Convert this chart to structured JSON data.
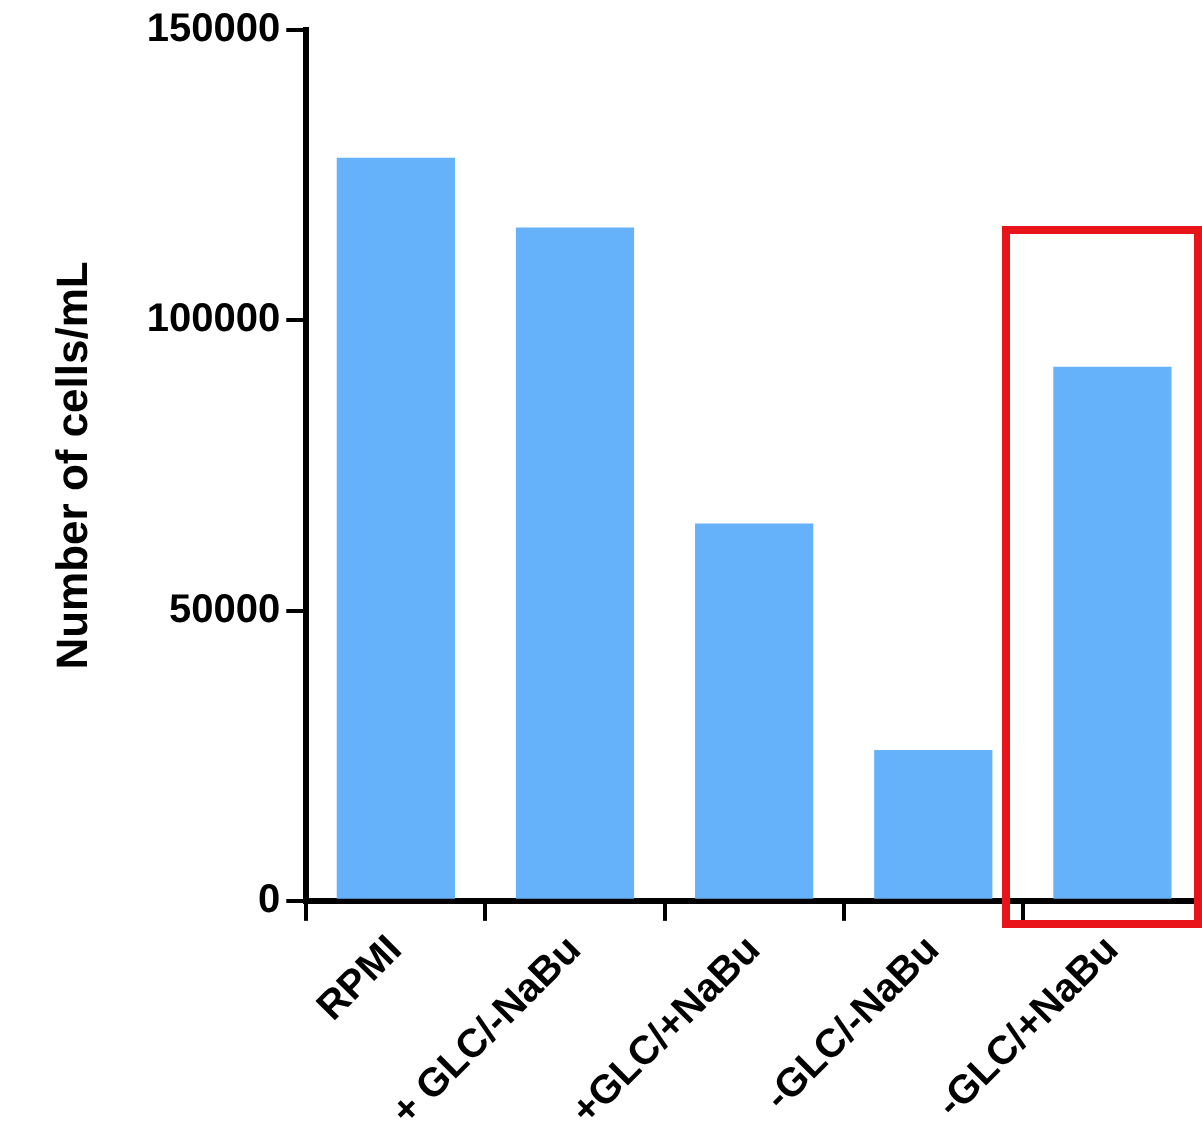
{
  "chart_data": {
    "type": "bar",
    "ylabel": "Number of cells/mL",
    "categories": [
      "RPMI",
      "+ GLC/-NaBu",
      "+GLC/+NaBu",
      "-GLC/-NaBu",
      "-GLC/+NaBu"
    ],
    "values": [
      128000,
      116000,
      65000,
      26000,
      92000
    ],
    "color": "#66b2fa",
    "ylim": [
      0,
      150000
    ],
    "yticks": [
      0,
      50000,
      100000,
      150000
    ],
    "grid": false,
    "legend": false
  }
}
